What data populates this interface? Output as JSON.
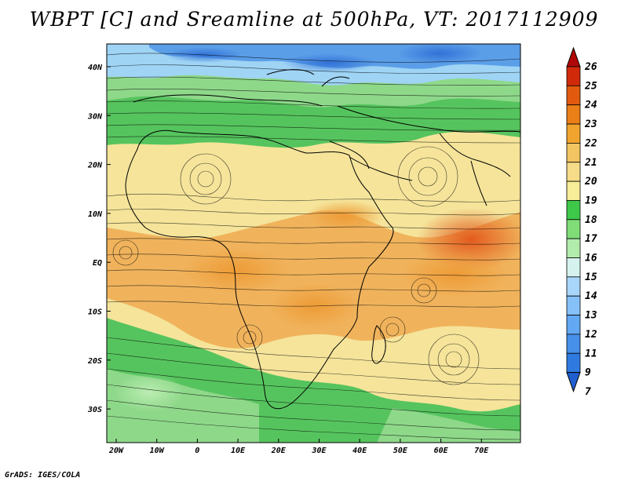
{
  "title": "WBPT [C] and Sreamline at 500hPa, VT: 2017112909",
  "footer": "GrADS: IGES/COLA",
  "map": {
    "lon_ticks": [
      "20W",
      "10W",
      "0",
      "10E",
      "20E",
      "30E",
      "40E",
      "50E",
      "60E",
      "70E"
    ],
    "lat_ticks": [
      "40N",
      "30N",
      "20N",
      "10N",
      "EQ",
      "10S",
      "20S",
      "30S"
    ]
  },
  "colorbar": {
    "labels": [
      "7",
      "9",
      "11",
      "12",
      "13",
      "14",
      "15",
      "16",
      "17",
      "18",
      "19",
      "20",
      "21",
      "22",
      "23",
      "24",
      "25",
      "26"
    ],
    "colors": [
      "#1f5fd0",
      "#2f7ae0",
      "#4690ea",
      "#62a8f2",
      "#85c0f8",
      "#a8d6fb",
      "#d6f2ee",
      "#b2ecac",
      "#7fdc77",
      "#3ec84a",
      "#f7ec98",
      "#f6dc88",
      "#f3c462",
      "#f0a42e",
      "#ea7f18",
      "#e25a0e",
      "#d02a0a",
      "#b00808"
    ]
  }
}
